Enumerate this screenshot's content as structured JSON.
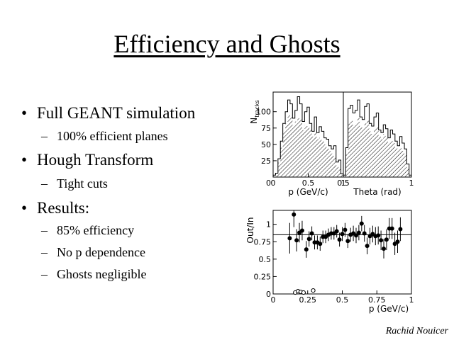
{
  "slide": {
    "title": "Efficiency and Ghosts",
    "bullets": [
      {
        "text": "Full GEANT simulation",
        "sub": [
          "100% efficient planes"
        ]
      },
      {
        "text": "Hough Transform",
        "sub": [
          "Tight cuts"
        ]
      },
      {
        "text": "Results:",
        "sub": [
          "85% efficiency",
          "No p dependence",
          "Ghosts negligible"
        ]
      }
    ],
    "bullet_glyph": "•",
    "dash_glyph": "–",
    "author": "Rachid Nouicer"
  },
  "chart_data": [
    {
      "type": "histogram",
      "panel": "p",
      "ylabel_main": "N",
      "ylabel_sub": "tracks",
      "xlabel": "p (GeV/c)",
      "xlim": [
        0,
        1
      ],
      "ylim": [
        0,
        130
      ],
      "x_ticks": [
        0,
        0.5,
        1
      ],
      "y_ticks": [
        25,
        50,
        75,
        100
      ],
      "bin_width": 0.0345,
      "series": [
        {
          "name": "outer",
          "values": [
            3,
            6,
            28,
            55,
            82,
            100,
            118,
            112,
            90,
            102,
            123,
            112,
            85,
            100,
            107,
            82,
            70,
            92,
            68,
            77,
            70,
            60,
            58,
            48,
            43,
            48,
            23,
            26,
            5
          ]
        },
        {
          "name": "inner-hatched",
          "values": [
            2,
            4,
            22,
            45,
            70,
            82,
            95,
            92,
            80,
            85,
            90,
            88,
            72,
            80,
            78,
            72,
            62,
            70,
            58,
            60,
            55,
            50,
            46,
            40,
            36,
            32,
            18,
            12,
            4
          ]
        }
      ]
    },
    {
      "type": "histogram",
      "panel": "theta",
      "xlabel": "Theta (rad)",
      "xlim": [
        0.5,
        1
      ],
      "ylim": [
        0,
        130
      ],
      "x_ticks": [
        0.5,
        1
      ],
      "tick_labels": [
        "0.5",
        "1"
      ],
      "bin_width": 0.0172,
      "series": [
        {
          "name": "outer",
          "values": [
            3,
            45,
            105,
            110,
            98,
            102,
            118,
            92,
            88,
            108,
            112,
            82,
            78,
            92,
            98,
            72,
            68,
            80,
            74,
            60,
            72,
            66,
            55,
            48,
            62,
            52,
            43,
            20,
            3
          ]
        },
        {
          "name": "inner-hatched",
          "values": [
            2,
            35,
            82,
            86,
            80,
            82,
            90,
            78,
            74,
            82,
            86,
            70,
            66,
            74,
            76,
            62,
            58,
            66,
            60,
            52,
            56,
            52,
            46,
            42,
            44,
            40,
            34,
            14,
            2
          ]
        }
      ]
    },
    {
      "type": "scatter",
      "panel": "efficiency",
      "ylabel": "Out/In",
      "xlabel": "p (GeV/c)",
      "xlim": [
        0,
        1
      ],
      "ylim": [
        0,
        1.2
      ],
      "x_ticks": [
        0,
        0.25,
        0.5,
        0.75,
        1
      ],
      "tick_labels": [
        "0",
        "0.25",
        "0.5",
        "0.75",
        "1"
      ],
      "y_ticks": [
        0,
        0.25,
        0.5,
        0.75,
        1
      ],
      "reference_line": 0.85,
      "series": [
        {
          "name": "efficiency",
          "marker": "filled",
          "x": [
            0.12,
            0.15,
            0.17,
            0.19,
            0.21,
            0.24,
            0.26,
            0.28,
            0.3,
            0.32,
            0.34,
            0.36,
            0.38,
            0.4,
            0.42,
            0.44,
            0.46,
            0.48,
            0.5,
            0.52,
            0.54,
            0.56,
            0.58,
            0.6,
            0.62,
            0.64,
            0.66,
            0.68,
            0.7,
            0.72,
            0.74,
            0.76,
            0.78,
            0.8,
            0.82,
            0.84,
            0.86,
            0.88,
            0.9,
            0.92
          ],
          "y": [
            0.8,
            1.14,
            0.77,
            0.88,
            0.91,
            0.64,
            0.79,
            0.87,
            0.74,
            0.74,
            0.72,
            0.82,
            0.82,
            0.85,
            0.87,
            0.87,
            0.9,
            0.78,
            0.86,
            0.92,
            0.76,
            0.85,
            0.87,
            0.84,
            0.88,
            1.01,
            0.87,
            0.69,
            0.83,
            0.86,
            0.83,
            0.84,
            0.77,
            0.65,
            0.78,
            0.94,
            0.94,
            0.72,
            0.75,
            0.93
          ],
          "err": [
            0.22,
            0.18,
            0.16,
            0.14,
            0.14,
            0.12,
            0.11,
            0.1,
            0.1,
            0.1,
            0.1,
            0.09,
            0.09,
            0.09,
            0.09,
            0.09,
            0.09,
            0.1,
            0.1,
            0.1,
            0.1,
            0.1,
            0.11,
            0.11,
            0.11,
            0.11,
            0.12,
            0.12,
            0.12,
            0.12,
            0.13,
            0.13,
            0.14,
            0.14,
            0.15,
            0.15,
            0.15,
            0.16,
            0.16,
            0.17
          ]
        },
        {
          "name": "ghosts",
          "marker": "open",
          "x": [
            0.16,
            0.18,
            0.2,
            0.22,
            0.29
          ],
          "y": [
            0.02,
            0.04,
            0.03,
            0.02,
            0.05
          ]
        }
      ]
    }
  ]
}
